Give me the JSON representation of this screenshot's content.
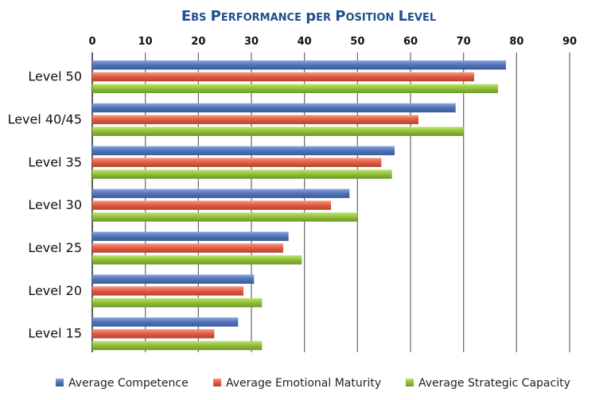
{
  "chart_data": {
    "type": "bar",
    "orientation": "horizontal",
    "title": "EBS Performance per Position Level",
    "xlabel": "",
    "ylabel": "",
    "xlim": [
      0,
      90
    ],
    "x_ticks": [
      0,
      10,
      20,
      30,
      40,
      50,
      60,
      70,
      80,
      90
    ],
    "x_axis_position": "top",
    "grid": true,
    "legend_position": "bottom",
    "categories": [
      "Level 50",
      "Level 40/45",
      "Level 35",
      "Level 30",
      "Level 25",
      "Level 20",
      "Level 15"
    ],
    "series": [
      {
        "name": "Average Competence",
        "color": "#4f73b8",
        "values": [
          78,
          68.5,
          57,
          48.5,
          37,
          30.5,
          27.5
        ]
      },
      {
        "name": "Average Emotional Maturity",
        "color": "#e05a40",
        "values": [
          72,
          61.5,
          54.5,
          45,
          36,
          28.5,
          23
        ]
      },
      {
        "name": "Average Strategic Capacity",
        "color": "#8fbf36",
        "values": [
          76.5,
          70,
          56.5,
          50,
          39.5,
          32,
          32
        ]
      }
    ]
  }
}
